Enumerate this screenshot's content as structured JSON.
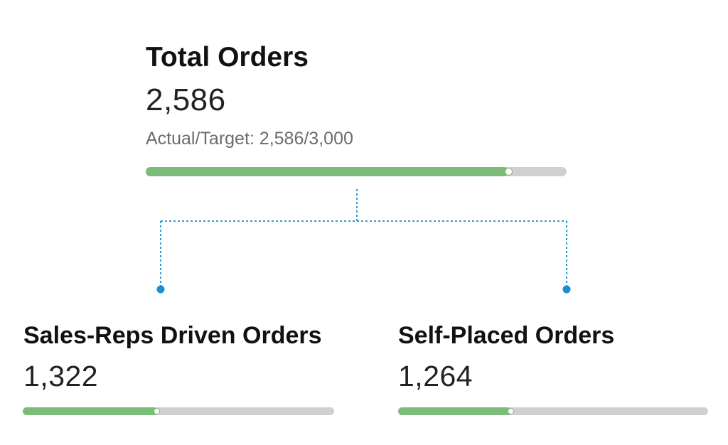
{
  "total": {
    "title": "Total Orders",
    "value": "2,586",
    "target_text": "Actual/Target: 2,586/3,000",
    "progress": 0.862
  },
  "children": [
    {
      "title": "Sales-Reps Driven Orders",
      "value": "1,322",
      "progress": 0.431
    },
    {
      "title": "Self-Placed Orders",
      "value": "1,264",
      "progress": 0.364
    }
  ],
  "colors": {
    "progress_fill": "#7bbd78",
    "progress_track": "#d0d0d0",
    "connector": "#1a8fcf"
  }
}
